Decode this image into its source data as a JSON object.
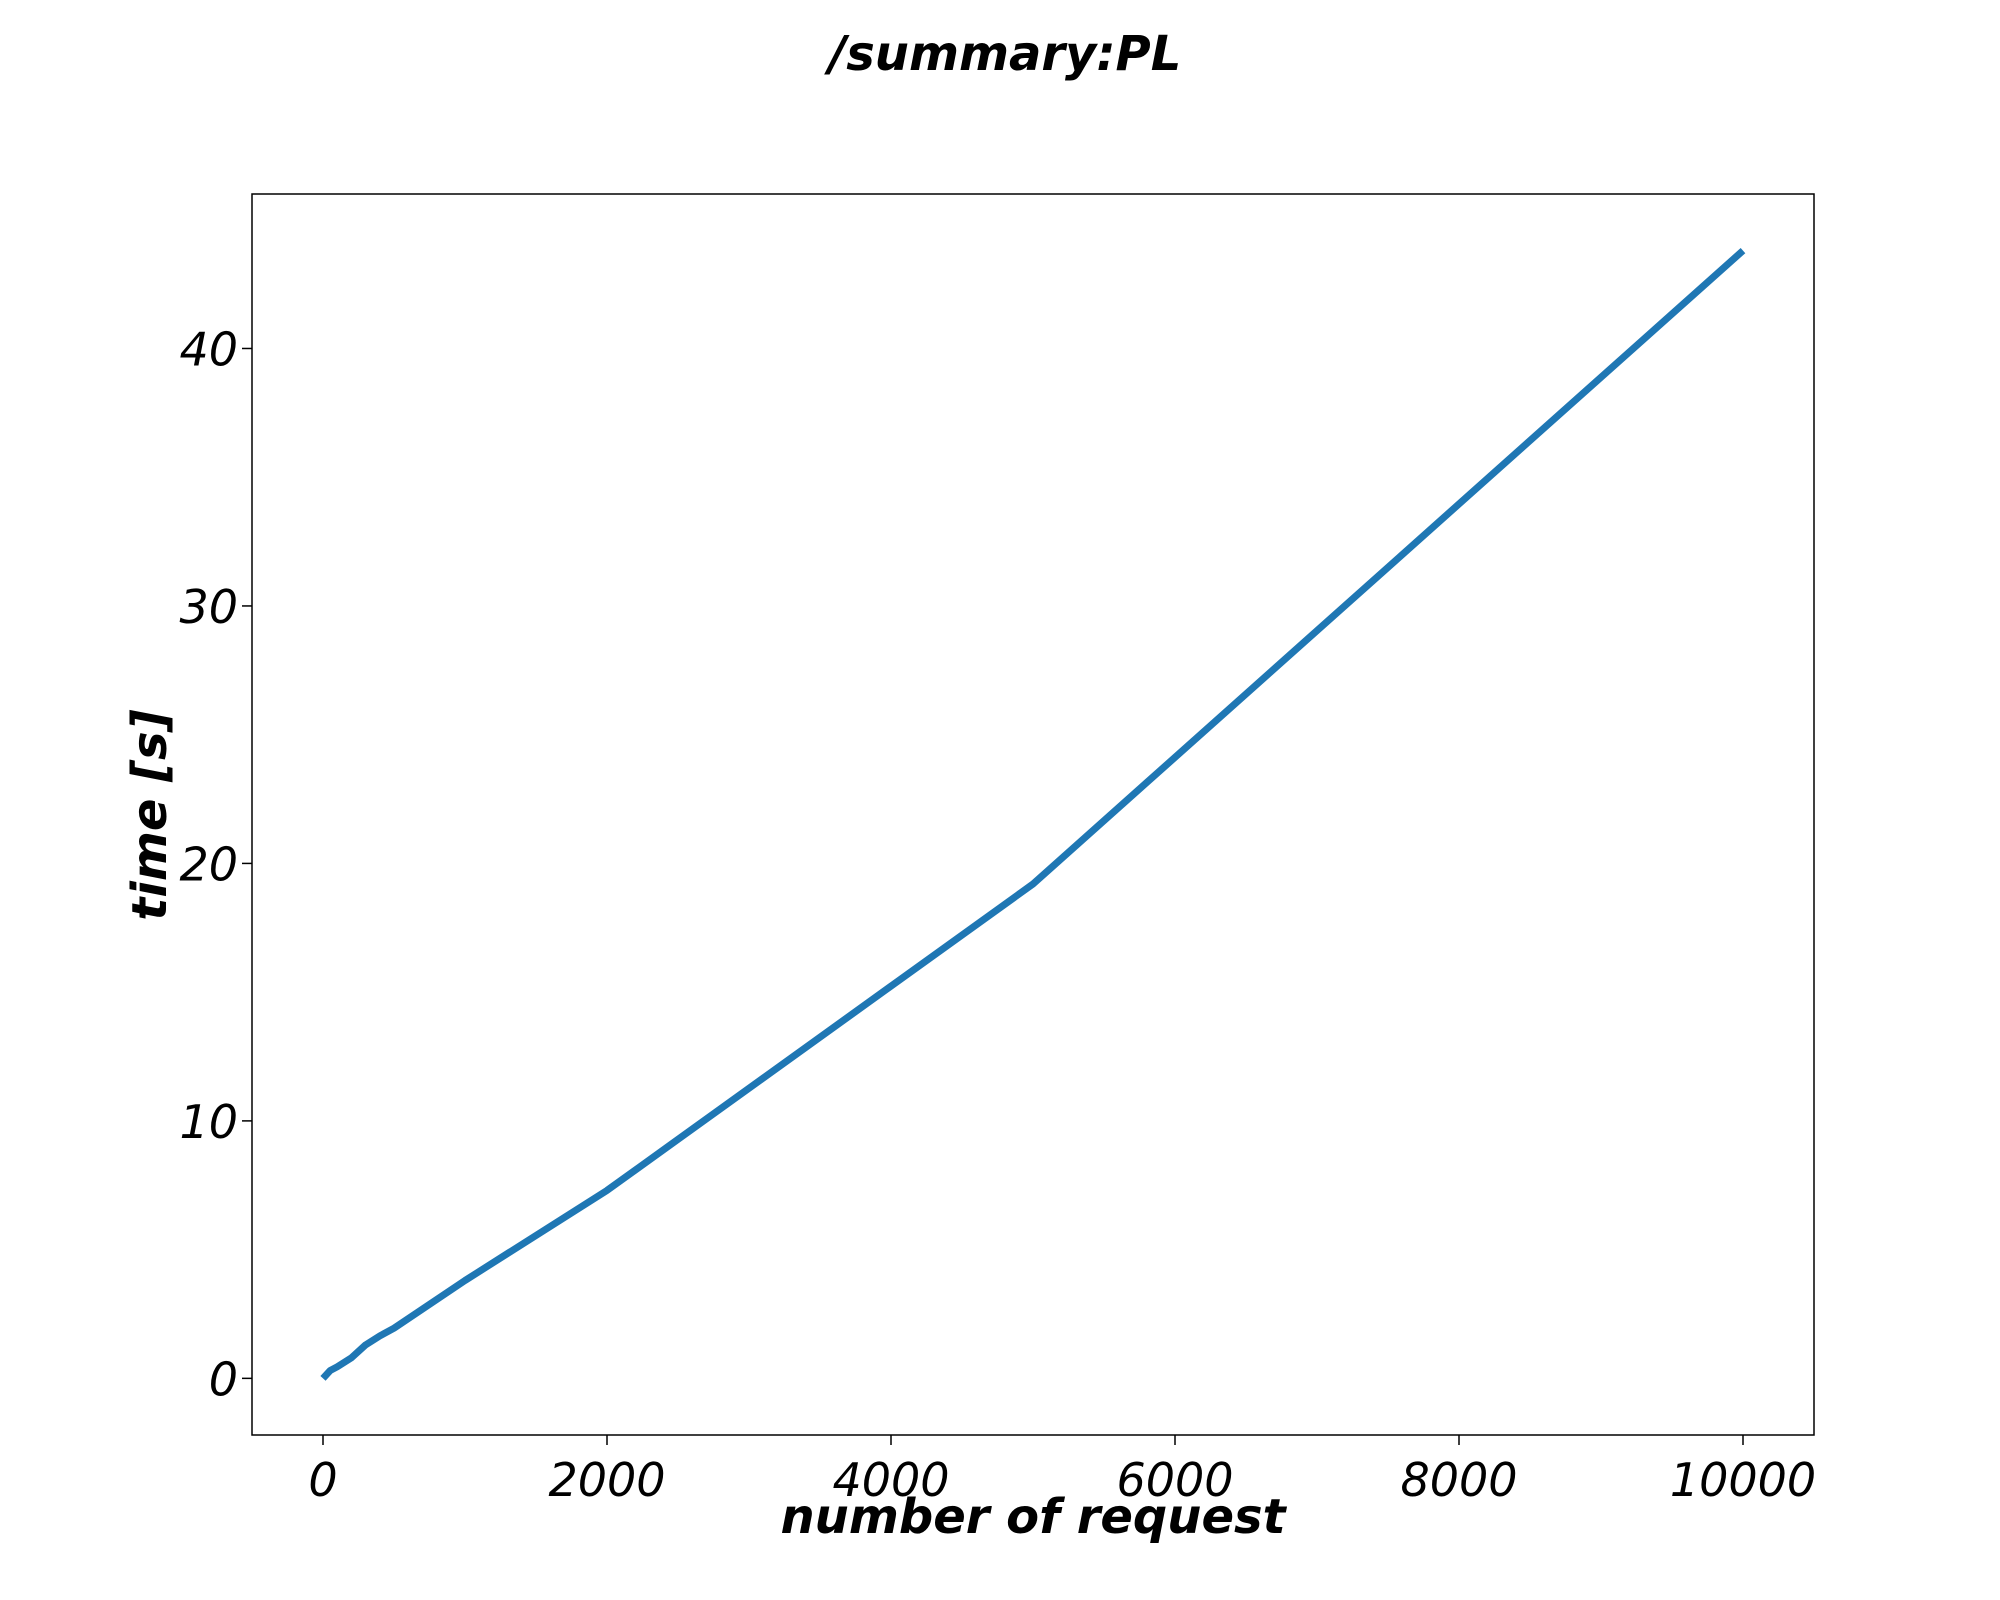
{
  "chart_data": {
    "type": "line",
    "title": "/summary:PL",
    "xlabel": "number of request",
    "ylabel": "time [s]",
    "xlim": [
      -500,
      10500
    ],
    "ylim": [
      -2.2,
      46
    ],
    "x_ticks": [
      0,
      2000,
      4000,
      6000,
      8000,
      10000
    ],
    "x_tick_labels": [
      "0",
      "2000",
      "4000",
      "6000",
      "8000",
      "10000"
    ],
    "y_ticks": [
      0,
      10,
      20,
      30,
      40
    ],
    "y_tick_labels": [
      "0",
      "10",
      "20",
      "30",
      "40"
    ],
    "grid": false,
    "legend": "none",
    "series": [
      {
        "color": "#1f77b4",
        "x": [
          0,
          50,
          100,
          200,
          300,
          400,
          500,
          1000,
          2000,
          5000,
          10000
        ],
        "y": [
          0.0,
          0.3,
          0.45,
          0.8,
          1.3,
          1.65,
          1.95,
          3.8,
          7.3,
          19.2,
          43.8
        ]
      }
    ]
  }
}
